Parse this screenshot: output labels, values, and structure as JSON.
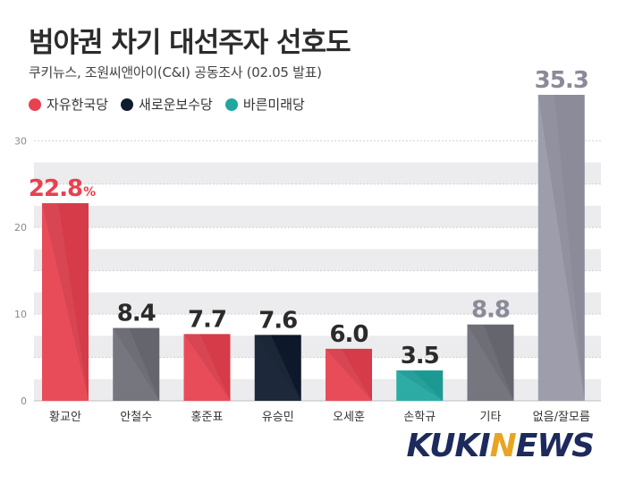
{
  "header": {
    "title": "범야권 차기 대선주자 선호도",
    "subtitle": "쿠키뉴스, 조원씨앤아이(C&I) 공동조사 (02.05 발표)"
  },
  "legend": [
    {
      "label": "자유한국당",
      "color": "#e8414f"
    },
    {
      "label": "새로운보수당",
      "color": "#0f1c2e"
    },
    {
      "label": "바른미래당",
      "color": "#1fa7a0"
    }
  ],
  "watermark": {
    "pre": "KUKI",
    "n": "N",
    "post": "EWS"
  },
  "chart_data": {
    "type": "bar",
    "categories": [
      "황교안",
      "안철수",
      "홍준표",
      "유승민",
      "오세훈",
      "손학규",
      "기타",
      "없음/잘모름"
    ],
    "values": [
      22.8,
      8.4,
      7.7,
      7.6,
      6.0,
      3.5,
      8.8,
      35.3
    ],
    "value_labels": [
      "22.8",
      "8.4",
      "7.7",
      "7.6",
      "6.0",
      "3.5",
      "8.8",
      "35.3"
    ],
    "first_label_suffix": "%",
    "bar_colors": [
      "#e8414f",
      "#6e6e78",
      "#e8414f",
      "#0f1c2e",
      "#e8414f",
      "#1fa7a0",
      "#6e6e78",
      "#9797a6"
    ],
    "label_colors": [
      "#e8414f",
      "#2b2b2b",
      "#2b2b2b",
      "#2b2b2b",
      "#2b2b2b",
      "#2b2b2b",
      "#8a8a98",
      "#8a8a98"
    ],
    "y_ticks": [
      0,
      10,
      20,
      30
    ],
    "ylim": [
      0,
      35.3
    ],
    "grid": "alternating bands"
  }
}
